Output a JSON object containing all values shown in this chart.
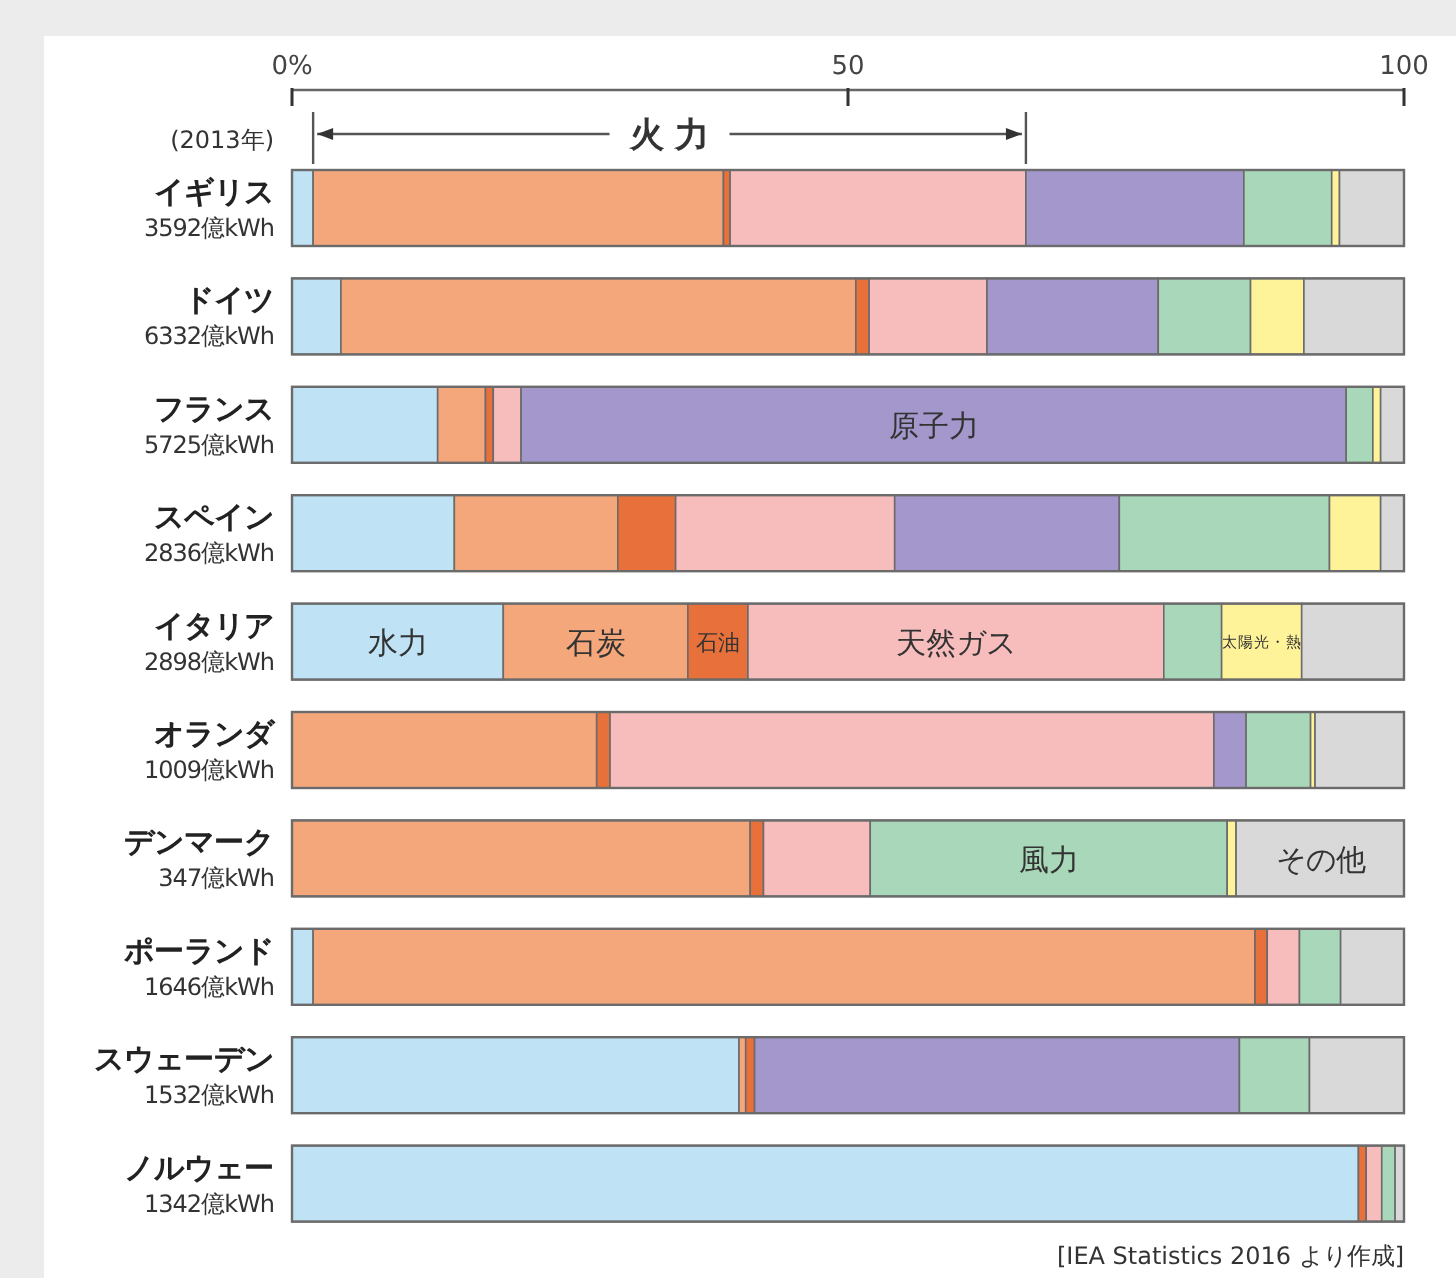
{
  "chart_data": {
    "type": "bar",
    "orientation": "horizontal",
    "stacked": true,
    "categories": [
      "イギリス\n3592億kWh",
      "ドイツ\n6332億kWh",
      "フランス\n5725億kWh",
      "スペイン\n2836億kWh",
      "イタリア\n2898億kWh",
      "オランダ\n1009億kWh",
      "デンマーク\n347億kWh",
      "ポーランド\n1646億kWh",
      "スウェーデン\n1532億kWh",
      "ノルウェー\n1342億kWh"
    ],
    "series": [
      {
        "color": "#bfe3f5",
        "values": [
          1.9,
          4.4,
          13.1,
          14.6,
          19.0,
          0,
          0,
          1.9,
          40.2,
          95.9
        ]
      },
      {
        "color": "#f5a77c",
        "values": [
          36.9,
          46.3,
          4.3,
          14.7,
          16.6,
          27.4,
          41.2,
          84.7,
          0.6,
          0
        ]
      },
      {
        "color": "#e8703a",
        "values": [
          0.6,
          1.2,
          0.7,
          5.2,
          5.4,
          1.2,
          1.2,
          1.1,
          0.8,
          0.7
        ]
      },
      {
        "color": "#f7bcbc",
        "values": [
          26.6,
          10.6,
          2.5,
          19.7,
          37.4,
          54.3,
          9.6,
          2.9,
          0,
          1.4
        ]
      },
      {
        "color": "#a397cc",
        "values": [
          19.6,
          15.4,
          74.2,
          20.2,
          0,
          2.9,
          0,
          0,
          43.6,
          0
        ]
      },
      {
        "color": "#a8d8b9",
        "values": [
          7.9,
          8.3,
          2.4,
          18.9,
          5.2,
          5.8,
          32.1,
          3.7,
          6.3,
          1.2
        ]
      },
      {
        "color": "#fff39a",
        "values": [
          0.7,
          4.8,
          0.7,
          4.6,
          7.2,
          0.4,
          0.8,
          0,
          0,
          0
        ]
      },
      {
        "color": "#d9d9d9",
        "values": [
          5.8,
          9.0,
          2.1,
          2.1,
          9.2,
          8.0,
          15.1,
          5.7,
          8.5,
          0.8
        ]
      }
    ],
    "xlim": [
      0,
      100
    ],
    "xticks": [
      {
        "value": 0,
        "label": "0%"
      },
      50,
      100
    ],
    "grid": false,
    "annotations": [
      "(2013年)",
      "火 力",
      {
        "text": "水力",
        "x": 9.5,
        "y": "イタリア\n2898億kWh"
      },
      {
        "text": "石炭",
        "x": 27.3,
        "y": "イタリア\n2898億kWh"
      },
      {
        "text": "石油",
        "x": 38.3,
        "y": "イタリア\n2898億kWh"
      },
      {
        "text": "天然ガス",
        "x": 59.7,
        "y": "イタリア\n2898億kWh"
      },
      {
        "text": "太陽光・熱",
        "x": 87.2,
        "y": "イタリア\n2898億kWh"
      },
      {
        "text": "原子力",
        "x": 57.7,
        "y": "フランス\n5725億kWh"
      },
      {
        "text": "風力",
        "x": 68.1,
        "y": "デンマーク\n347億kWh"
      },
      {
        "text": "その他",
        "x": 92.5,
        "y": "デンマーク\n347億kWh"
      },
      "[IEA Statistics 2016 より作成]"
    ]
  }
}
